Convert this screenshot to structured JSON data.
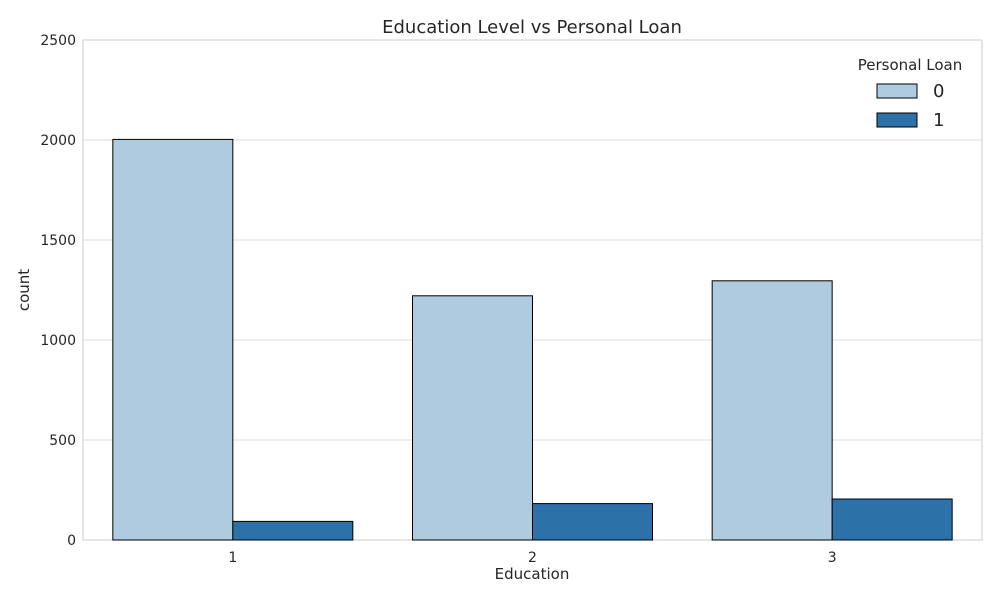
{
  "chart_data": {
    "type": "bar",
    "title": "Education Level vs Personal Loan",
    "xlabel": "Education",
    "ylabel": "count",
    "categories": [
      "1",
      "2",
      "3"
    ],
    "series": [
      {
        "name": "0",
        "values": [
          2003,
          1221,
          1296
        ],
        "color": "#aecbdf"
      },
      {
        "name": "1",
        "values": [
          93,
          182,
          205
        ],
        "color": "#2c72a8"
      }
    ],
    "ylim": [
      0,
      2500
    ],
    "yticks": [
      0,
      500,
      1000,
      1500,
      2000,
      2500
    ],
    "grid": true,
    "legend": {
      "title": "Personal Loan",
      "placement": "top-right"
    }
  }
}
